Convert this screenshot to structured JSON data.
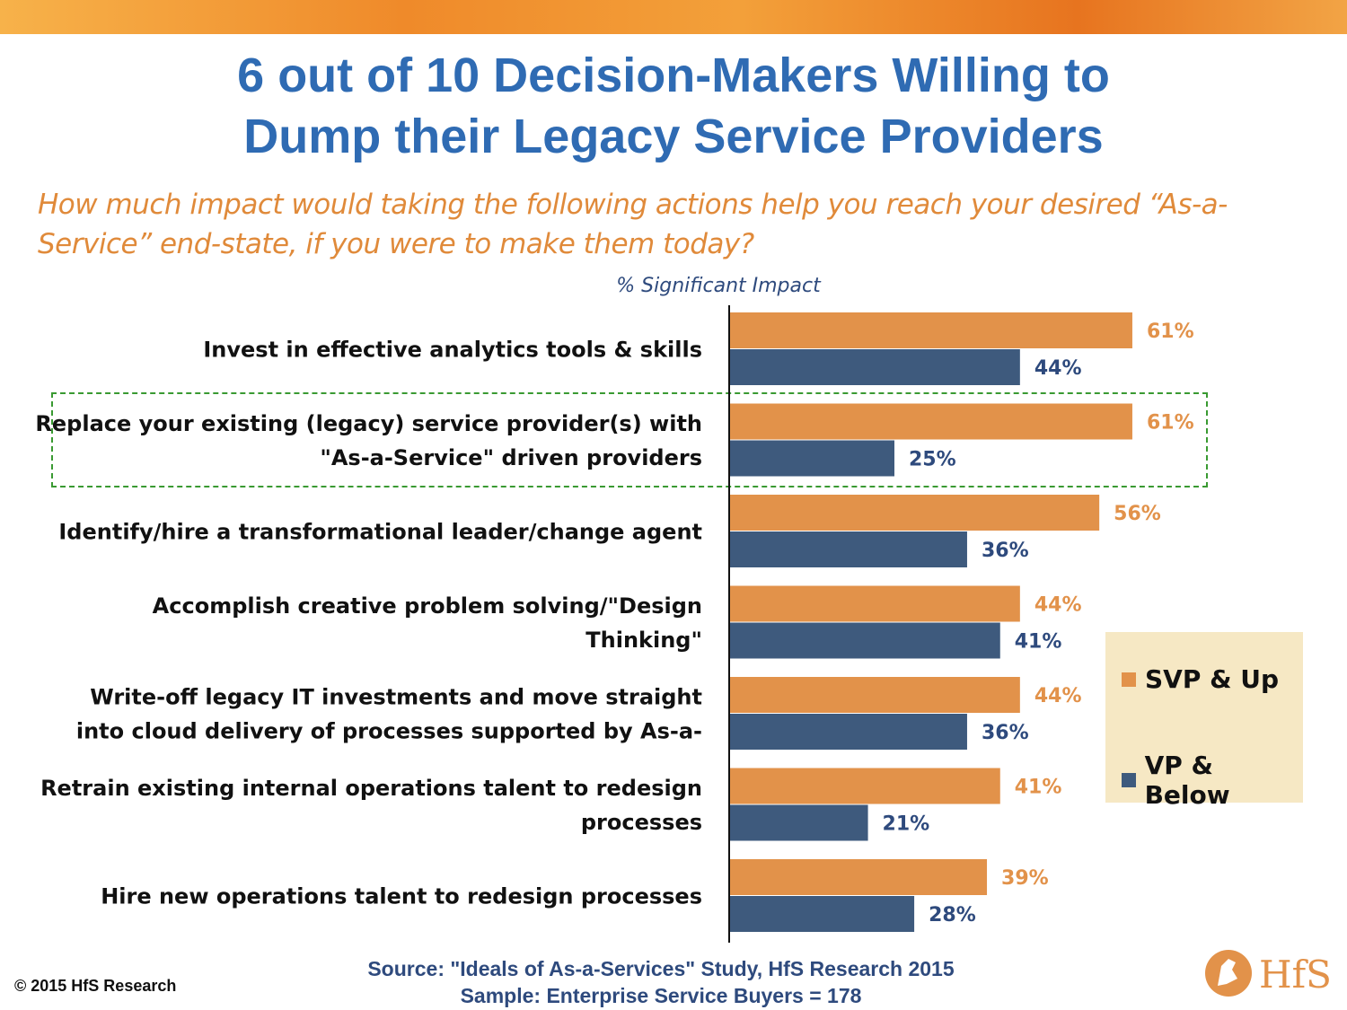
{
  "title": {
    "line1": "6 out of 10 Decision-Makers Willing to",
    "line2": "Dump their Legacy Service Providers"
  },
  "question": "How much impact would taking the following actions help you reach your desired “As-a-Service” end-state, if you were to make them today?",
  "metric_label": "% Significant Impact",
  "legend": {
    "svp": "SVP & Up",
    "vp": "VP & Below"
  },
  "source": {
    "line1": "Source: \"Ideals of As-a-Services\" Study, HfS Research 2015",
    "line2": "Sample: Enterprise Service Buyers = 178"
  },
  "copyright": "© 2015 HfS Research",
  "logo_text": "HfS",
  "colors": {
    "svp": "#e2924a",
    "vp": "#3e5a7d",
    "svp_label": "#e2924a",
    "vp_label": "#2e4a7d",
    "title": "#2f6bb3",
    "highlight": "#3a9a32"
  },
  "chart_data": {
    "type": "bar",
    "orientation": "horizontal",
    "categories": [
      "Invest in effective analytics tools & skills",
      "Replace your existing (legacy) service provider(s) with \"As-a-Service\" driven providers",
      "Identify/hire a transformational leader/change agent",
      "Accomplish creative problem solving/\"Design Thinking\"",
      "Write-off legacy IT investments and move straight into cloud delivery of processes supported by As-a-",
      "Retrain existing internal operations talent to redesign processes",
      "Hire new operations talent to redesign processes"
    ],
    "category_lines": [
      [
        "Invest in effective analytics tools & skills"
      ],
      [
        "Replace your existing (legacy) service provider(s) with",
        "\"As-a-Service\" driven providers"
      ],
      [
        "Identify/hire a transformational leader/change agent"
      ],
      [
        "Accomplish creative problem solving/\"Design",
        "Thinking\""
      ],
      [
        "Write-off legacy IT investments and move straight",
        "into cloud delivery of processes supported by As-a-"
      ],
      [
        "Retrain existing internal operations talent to redesign",
        "processes"
      ],
      [
        "Hire new operations talent to redesign processes"
      ]
    ],
    "series": [
      {
        "name": "SVP & Up",
        "values": [
          61,
          61,
          56,
          44,
          44,
          41,
          39
        ],
        "labels": [
          "61%",
          "61%",
          "56%",
          "44%",
          "44%",
          "41%",
          "39%"
        ]
      },
      {
        "name": "VP & Below",
        "values": [
          44,
          25,
          36,
          41,
          36,
          21,
          28
        ],
        "labels": [
          "44%",
          "25%",
          "36%",
          "41%",
          "36%",
          "21%",
          "28%"
        ]
      }
    ],
    "xlim": [
      0,
      100
    ],
    "grid": false,
    "legend_position": "right",
    "highlighted_category": 1
  }
}
